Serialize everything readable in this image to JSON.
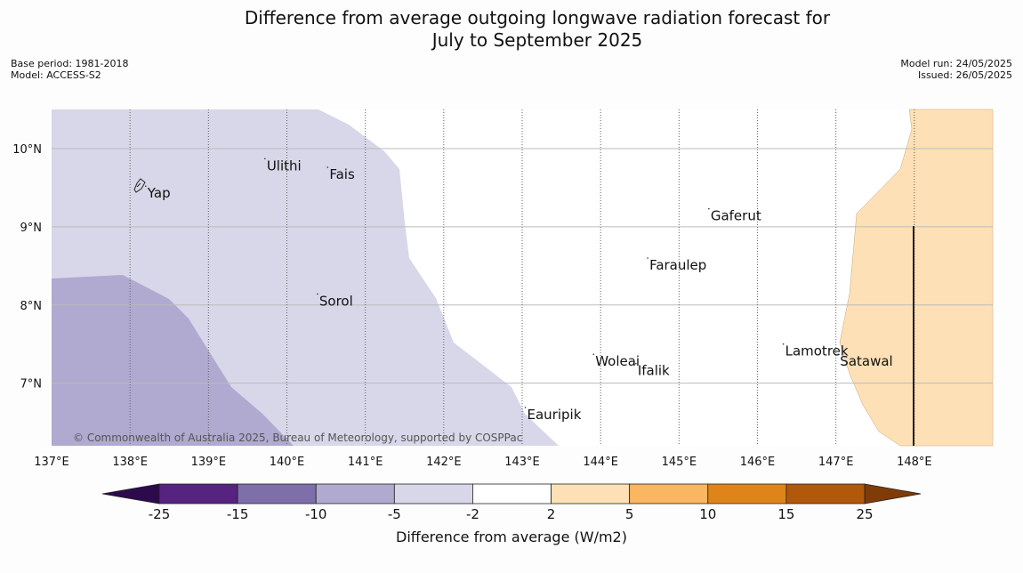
{
  "title": {
    "line1": "Difference from average outgoing longwave radiation forecast for",
    "line2": "July to September 2025"
  },
  "meta_left": {
    "base_period": "Base period: 1981-2018",
    "model": "Model: ACCESS-S2"
  },
  "meta_right": {
    "model_run": "Model run: 24/05/2025",
    "issued": "Issued: 26/05/2025"
  },
  "map": {
    "lon_range": [
      137,
      149
    ],
    "lat_range": [
      6.2,
      10.5
    ],
    "lon_ticks": [
      "137°E",
      "138°E",
      "139°E",
      "140°E",
      "141°E",
      "142°E",
      "143°E",
      "144°E",
      "145°E",
      "146°E",
      "147°E",
      "148°E"
    ],
    "lat_ticks": [
      "10°N",
      "9°N",
      "8°N",
      "7°N"
    ],
    "copyright": "© Commonwealth of Australia 2025, Bureau of Meteorology, supported by COSPPac",
    "places": [
      {
        "name": "Yap",
        "lon": 138.2,
        "lat": 9.52
      },
      {
        "name": "Ulithi",
        "lon": 139.72,
        "lat": 9.87
      },
      {
        "name": "Fais",
        "lon": 140.52,
        "lat": 9.76
      },
      {
        "name": "Gaferut",
        "lon": 145.38,
        "lat": 9.23
      },
      {
        "name": "Faraulep",
        "lon": 144.6,
        "lat": 8.6
      },
      {
        "name": "Sorol",
        "lon": 140.39,
        "lat": 8.14
      },
      {
        "name": "Lamotrek",
        "lon": 146.33,
        "lat": 7.5
      },
      {
        "name": "Woleai",
        "lon": 143.91,
        "lat": 7.37
      },
      {
        "name": "Ifalik",
        "lon": 144.45,
        "lat": 7.25
      },
      {
        "name": "Satawal",
        "lon": 147.03,
        "lat": 7.37
      },
      {
        "name": "Eauripik",
        "lon": 143.04,
        "lat": 6.69
      }
    ]
  },
  "colorbar": {
    "ticks": [
      "-25",
      "-15",
      "-10",
      "-5",
      "-2",
      "2",
      "5",
      "10",
      "15",
      "25"
    ],
    "colors": [
      "#562381",
      "#7e6eaa",
      "#b0a9d0",
      "#d7d7e9",
      "#ffffff",
      "#fde0b5",
      "#fbb661",
      "#e0841a",
      "#b2580b"
    ],
    "low_extend_color": "#2d0a4e",
    "high_extend_color": "#7f3b08",
    "label": "Difference from average (W/m2)"
  },
  "legend_colors": {
    "light_purple": "#d7d7e9",
    "mid_purple": "#b0a9d0",
    "light_orange": "#fde0b5"
  }
}
